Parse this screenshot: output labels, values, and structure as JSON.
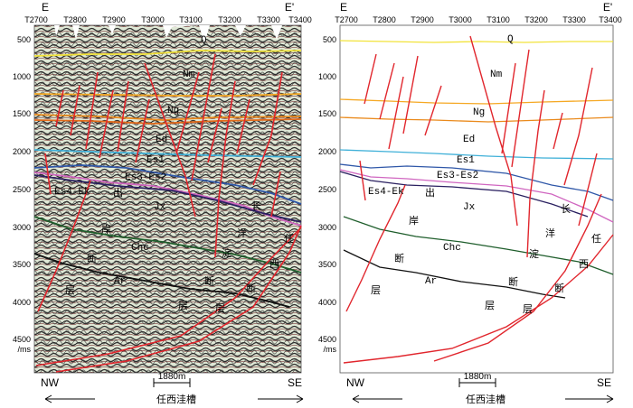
{
  "left_panel": {
    "ends": {
      "left": "E",
      "right": "E'"
    },
    "x_ticks": [
      "T2700",
      "T2800",
      "T2900",
      "T3000",
      "T3100",
      "T3200",
      "T3300",
      "T3400"
    ],
    "y_ticks": [
      "500",
      "1000",
      "1500",
      "2000",
      "2500",
      "3000",
      "3500",
      "4000",
      "4500"
    ],
    "y_unit": "/ms",
    "labels": {
      "Q": "Q",
      "Nm": "Nm",
      "Ng": "Ng",
      "Ed": "Ed",
      "Es1": "Es1",
      "Es3Es2": "Es3-Es2",
      "Es4Ek": "Es4-Ek",
      "Jx": "Jx",
      "Chc": "Chc",
      "Ar": "Ar",
      "chu": "出",
      "an": "岸",
      "duan1": "断",
      "ceng1": "层",
      "ren": "任",
      "xi": "西",
      "dian": "淀",
      "duan2": "断",
      "ceng2": "层",
      "chang": "长",
      "yang": "洋",
      "duan3": "断",
      "ceng3": "层"
    },
    "nw": "NW",
    "se": "SE",
    "scale": "1880m",
    "caption": "任西洼槽"
  },
  "right_panel": {
    "ends": {
      "left": "E",
      "right": "E'"
    },
    "x_ticks": [
      "T2700",
      "T2800",
      "T2900",
      "T3000",
      "T3100",
      "T3200",
      "T3300",
      "T3400"
    ],
    "y_ticks": [
      "500",
      "1000",
      "1500",
      "2000",
      "2500",
      "3000",
      "3500",
      "4000",
      "4500"
    ],
    "y_unit": "/ms",
    "labels": {
      "Q": "Q",
      "Nm": "Nm",
      "Ng": "Ng",
      "Ed": "Ed",
      "Es1": "Es1",
      "Es3Es2": "Es3-Es2",
      "Es4Ek": "Es4-Ek",
      "Jx": "Jx",
      "Chc": "Chc",
      "Ar": "Ar",
      "chu": "出",
      "an": "岸",
      "duan1": "断",
      "ceng1": "层",
      "ren": "任",
      "xi": "西",
      "dian": "淀",
      "duan2": "断",
      "ceng2": "层",
      "chang": "长",
      "yang": "洋",
      "duan3": "断",
      "ceng3": "层"
    },
    "nw": "NW",
    "se": "SE",
    "scale": "1880m",
    "caption": "任西洼槽"
  },
  "colors": {
    "Q": "#f2e33a",
    "Nm": "#f5a823",
    "Ng": "#ea8a1c",
    "Ed": "#e26a1a",
    "Es1": "#3fb0d8",
    "Es3Es2": "#2f57a8",
    "Es4Ek": "#d066c0",
    "Jx": "#2a2060",
    "Chc": "#1f5e2c",
    "Ar": "#111111",
    "fault": "#e1262d"
  }
}
